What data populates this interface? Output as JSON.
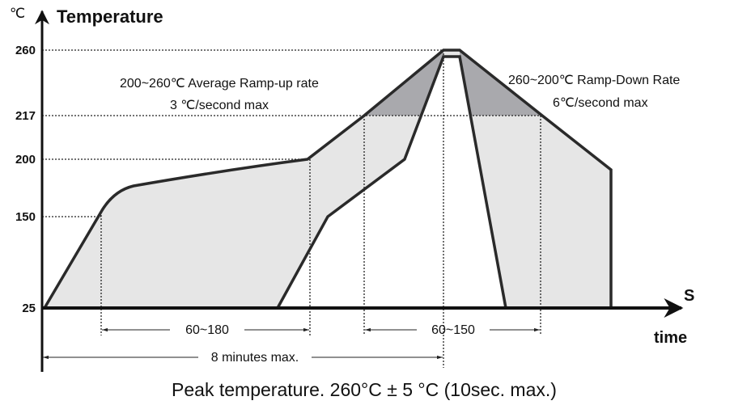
{
  "y_axis": {
    "unit": "℃",
    "title": "Temperature",
    "ticks": [
      260,
      217,
      200,
      150,
      25
    ]
  },
  "x_axis": {
    "unit": "S",
    "title": "time"
  },
  "annotations": {
    "ramp_up": "200~260℃  Average Ramp-up rate",
    "ramp_up_rate": "3 ℃/second max",
    "ramp_down": "260~200℃ Ramp-Down Rate",
    "ramp_down_rate": "6℃/second  max"
  },
  "durations": {
    "preheat": "60~180",
    "above_liquidus": "60~150",
    "total": "8 minutes max."
  },
  "caption": "Peak temperature. 260°C ± 5 °C (10sec. max.)"
}
